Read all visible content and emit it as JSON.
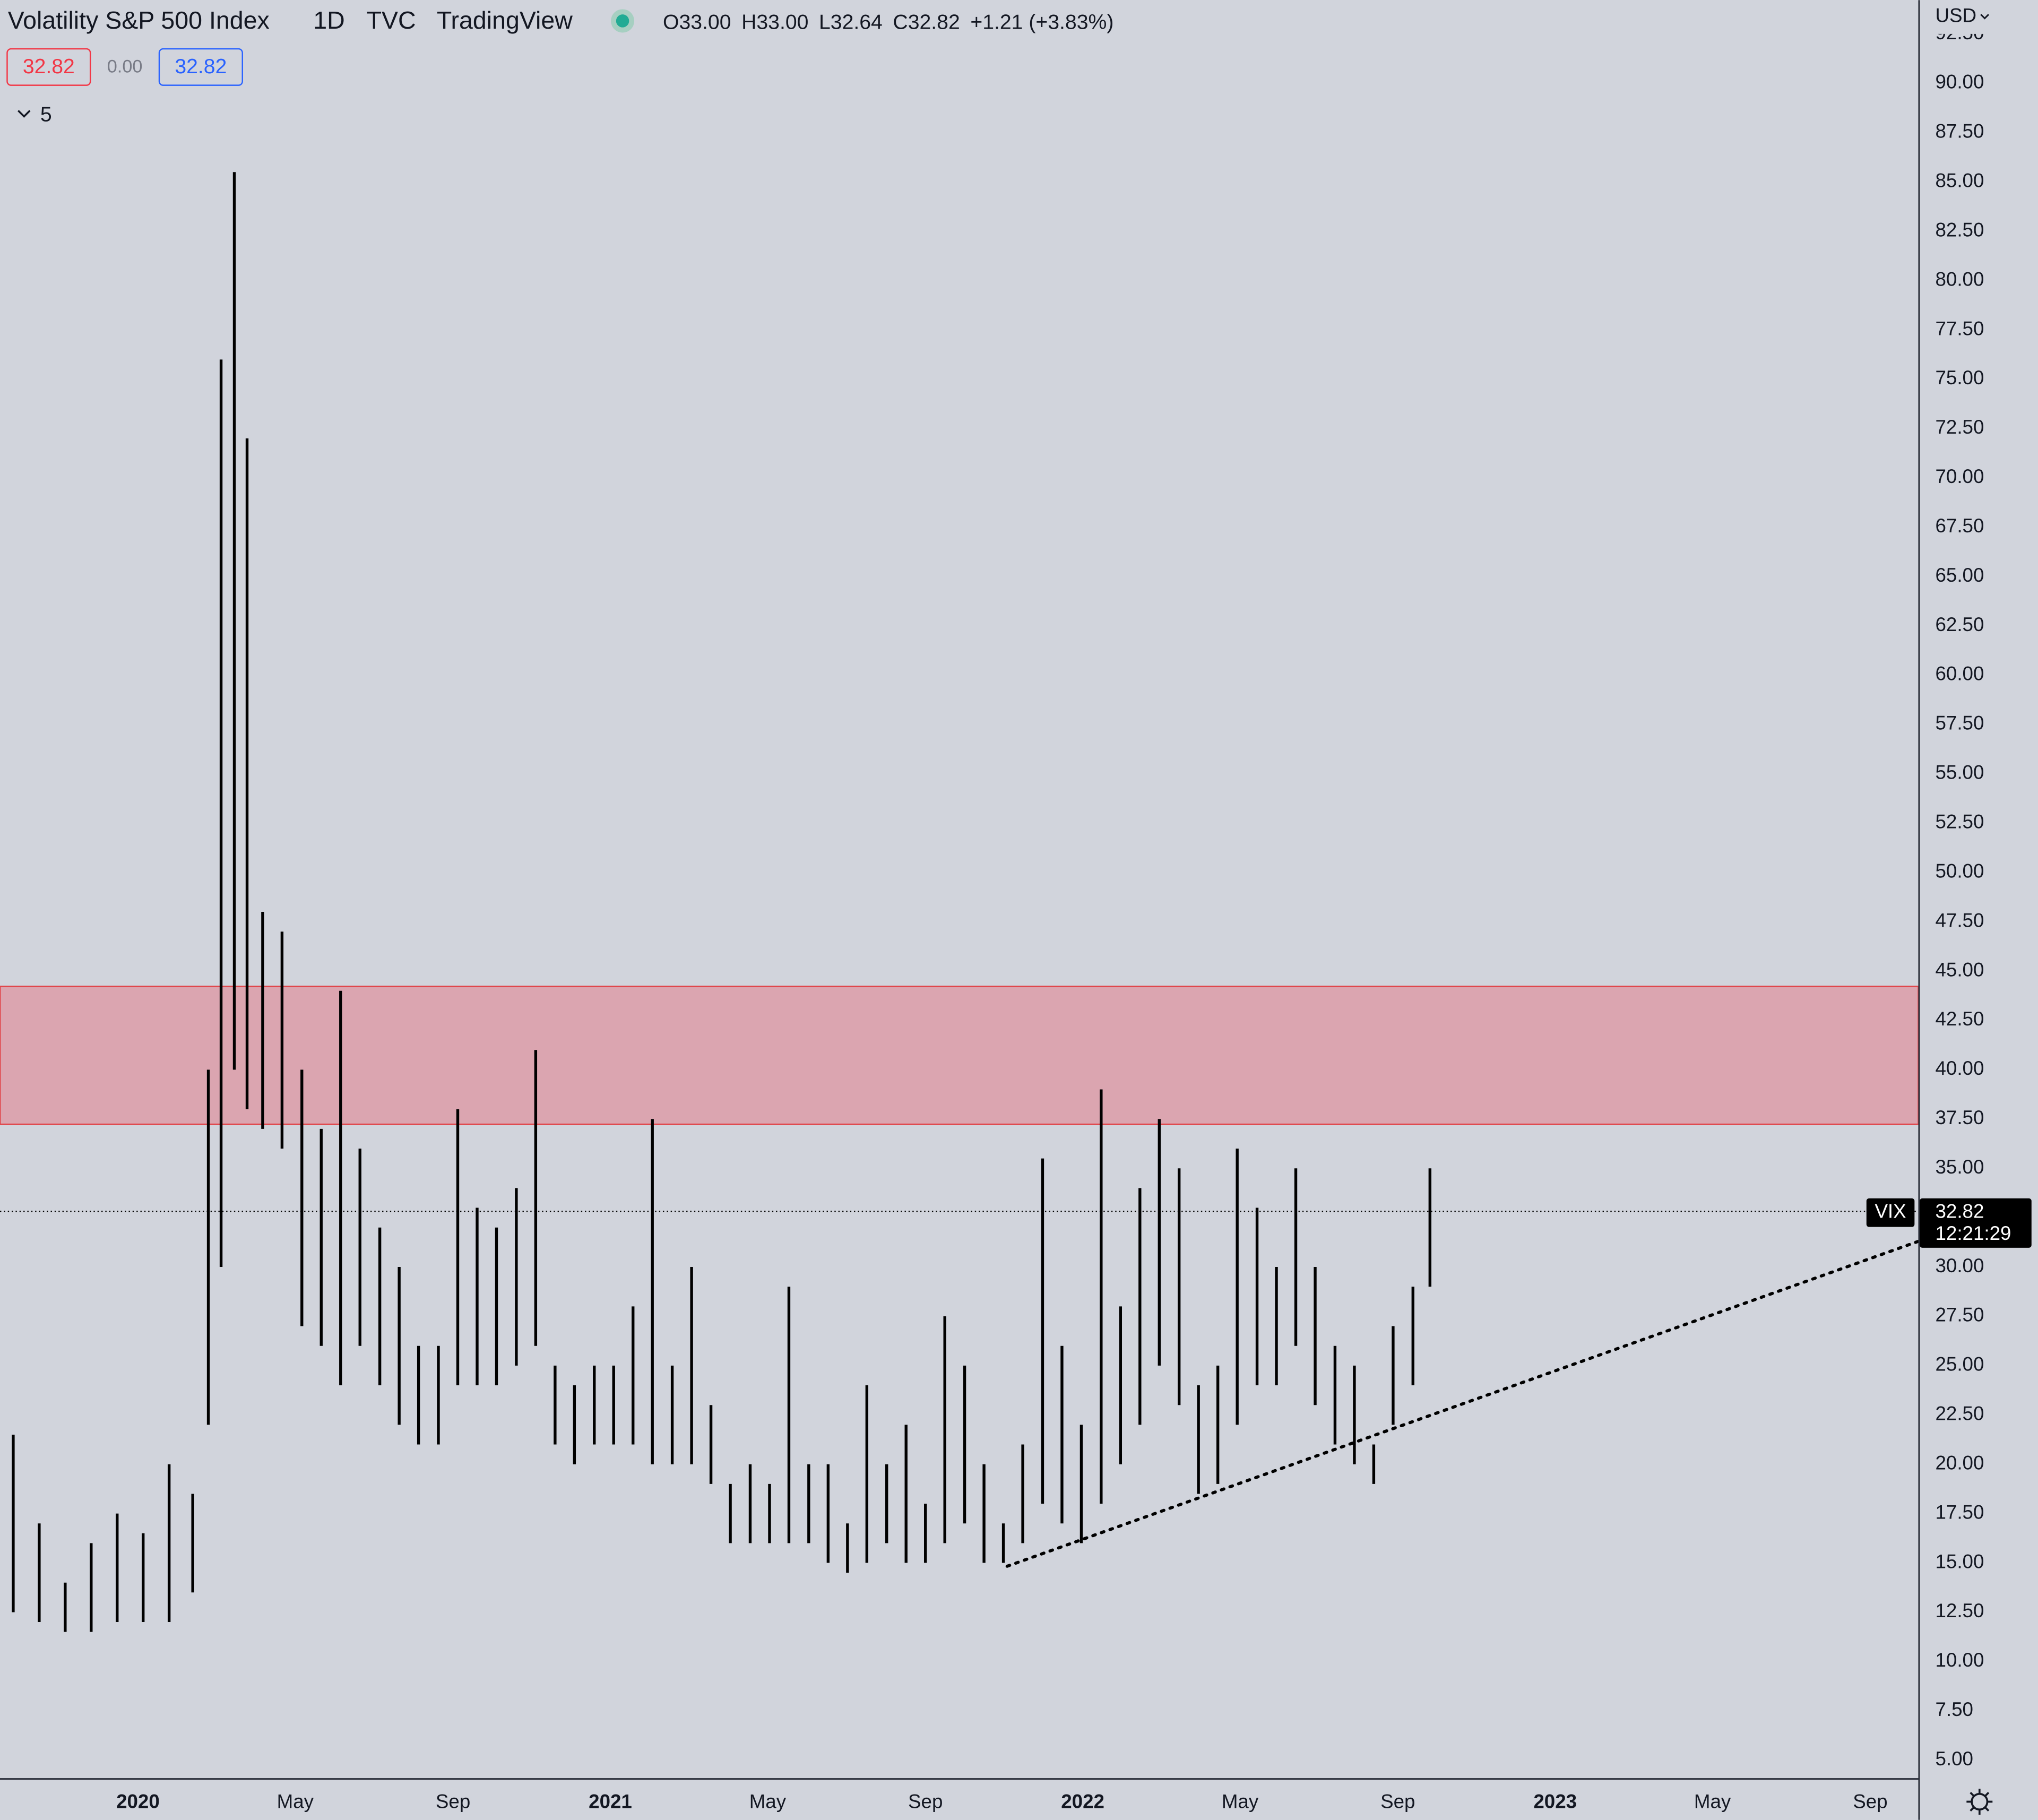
{
  "chart_data": {
    "type": "ohlc",
    "title": "Volatility S&P 500 Index",
    "interval": "1D",
    "exchange": "TVC",
    "source": "TradingView",
    "ohlc_header": [
      {
        "key": "O",
        "value": "33.00"
      },
      {
        "key": "H",
        "value": "33.00"
      },
      {
        "key": "L",
        "value": "32.64"
      },
      {
        "key": "C",
        "value": "32.82"
      }
    ],
    "change": "+1.21 (+3.83%)",
    "badges": [
      "32.82",
      "0.00",
      "32.82"
    ],
    "indicator_count": "5",
    "currency": "USD",
    "series_name": "VIX",
    "last_price": 32.82,
    "countdown": "12:21:29",
    "color": "#000000",
    "x": [
      2019.736,
      2019.791,
      2019.846,
      2019.901,
      2019.956,
      2020.011,
      2020.066,
      2020.116,
      2020.149,
      2020.176,
      2020.204,
      2020.231,
      2020.264,
      2020.305,
      2020.347,
      2020.388,
      2020.429,
      2020.47,
      2020.512,
      2020.553,
      2020.594,
      2020.636,
      2020.677,
      2020.718,
      2020.759,
      2020.801,
      2020.842,
      2020.883,
      2020.924,
      2020.966,
      2021.007,
      2021.048,
      2021.089,
      2021.131,
      2021.172,
      2021.213,
      2021.254,
      2021.296,
      2021.337,
      2021.378,
      2021.42,
      2021.461,
      2021.502,
      2021.543,
      2021.585,
      2021.626,
      2021.667,
      2021.708,
      2021.75,
      2021.791,
      2021.832,
      2021.873,
      2021.915,
      2021.956,
      2021.997,
      2022.039,
      2022.08,
      2022.121,
      2022.162,
      2022.204,
      2022.245,
      2022.286,
      2022.327,
      2022.369,
      2022.41,
      2022.451,
      2022.492,
      2022.534,
      2022.575,
      2022.616,
      2022.657,
      2022.699,
      2022.735
    ],
    "high": [
      21.5,
      17,
      14,
      16,
      17.5,
      16.5,
      20,
      18.5,
      40,
      76,
      85.5,
      72,
      48,
      47,
      40,
      37,
      44,
      36,
      32,
      30,
      26,
      26,
      38,
      33,
      32,
      34,
      41,
      25,
      24,
      25,
      25,
      28,
      37.5,
      25,
      30,
      23,
      19,
      20,
      19,
      29,
      20,
      20,
      17,
      24,
      20,
      22,
      18,
      27.5,
      25,
      20,
      17,
      21,
      35.5,
      26,
      22,
      39,
      28,
      34,
      37.5,
      35,
      24,
      25,
      36,
      33,
      30,
      35,
      30,
      26,
      25,
      21,
      27,
      29,
      35
    ],
    "low": [
      12.5,
      12,
      11.5,
      11.5,
      12,
      12,
      12,
      13.5,
      22,
      30,
      40,
      38,
      37,
      36,
      27,
      26,
      24,
      26,
      24,
      22,
      21,
      21,
      24,
      24,
      24,
      25,
      26,
      21,
      20,
      21,
      21,
      21,
      20,
      20,
      20,
      19,
      16,
      16,
      16,
      16,
      16,
      15,
      14.5,
      15,
      16,
      15,
      15,
      16,
      17,
      15,
      15,
      16,
      18,
      17,
      16,
      18,
      20,
      22,
      25,
      23,
      18.5,
      19,
      22,
      24,
      24,
      26,
      23,
      21,
      20,
      19,
      22,
      24,
      29
    ],
    "zone": {
      "from": 37.23,
      "to": 44.22,
      "color": "#dba5b0",
      "border": "#e0474c"
    },
    "trendline": {
      "x": [
        2021.84,
        2023.769
      ],
      "values": [
        14.83,
        31.3
      ]
    },
    "xlim": [
      2019.708,
      2023.769
    ],
    "ylim": [
      4.08,
      94.22
    ],
    "xticks": [
      2020,
      {
        "value": 2020.333,
        "label": "May"
      },
      {
        "value": 2020.667,
        "label": "Sep"
      },
      2021,
      {
        "value": 2021.333,
        "label": "May"
      },
      {
        "value": 2021.667,
        "label": "Sep"
      },
      2022,
      {
        "value": 2022.333,
        "label": "May"
      },
      {
        "value": 2022.667,
        "label": "Sep"
      },
      2023,
      {
        "value": 2023.333,
        "label": "May"
      },
      {
        "value": 2023.667,
        "label": "Sep"
      }
    ],
    "yticks": [
      {
        "value": 5,
        "label": "5.00"
      },
      {
        "value": 7.5,
        "label": "7.50"
      },
      {
        "value": 10,
        "label": "10.00"
      },
      {
        "value": 12.5,
        "label": "12.50"
      },
      {
        "value": 15,
        "label": "15.00"
      },
      {
        "value": 17.5,
        "label": "17.50"
      },
      {
        "value": 20,
        "label": "20.00"
      },
      {
        "value": 22.5,
        "label": "22.50"
      },
      {
        "value": 25,
        "label": "25.00"
      },
      {
        "value": 27.5,
        "label": "27.50"
      },
      {
        "value": 30,
        "label": "30.00"
      },
      {
        "value": 32.5,
        "label": "32.50"
      },
      {
        "value": 35,
        "label": "35.00"
      },
      {
        "value": 37.5,
        "label": "37.50"
      },
      {
        "value": 40,
        "label": "40.00"
      },
      {
        "value": 42.5,
        "label": "42.50"
      },
      {
        "value": 45,
        "label": "45.00"
      },
      {
        "value": 47.5,
        "label": "47.50"
      },
      {
        "value": 50,
        "label": "50.00"
      },
      {
        "value": 52.5,
        "label": "52.50"
      },
      {
        "value": 55,
        "label": "55.00"
      },
      {
        "value": 57.5,
        "label": "57.50"
      },
      {
        "value": 60,
        "label": "60.00"
      },
      {
        "value": 62.5,
        "label": "62.50"
      },
      {
        "value": 65,
        "label": "65.00"
      },
      {
        "value": 67.5,
        "label": "67.50"
      },
      {
        "value": 70,
        "label": "70.00"
      },
      {
        "value": 72.5,
        "label": "72.50"
      },
      {
        "value": 75,
        "label": "75.00"
      },
      {
        "value": 77.5,
        "label": "77.50"
      },
      {
        "value": 80,
        "label": "80.00"
      },
      {
        "value": 82.5,
        "label": "82.50"
      },
      {
        "value": 85,
        "label": "85.00"
      },
      {
        "value": 87.5,
        "label": "87.50"
      },
      {
        "value": 90,
        "label": "90.00"
      },
      {
        "value": 92.5,
        "label": "92.50"
      }
    ],
    "grid": false
  }
}
